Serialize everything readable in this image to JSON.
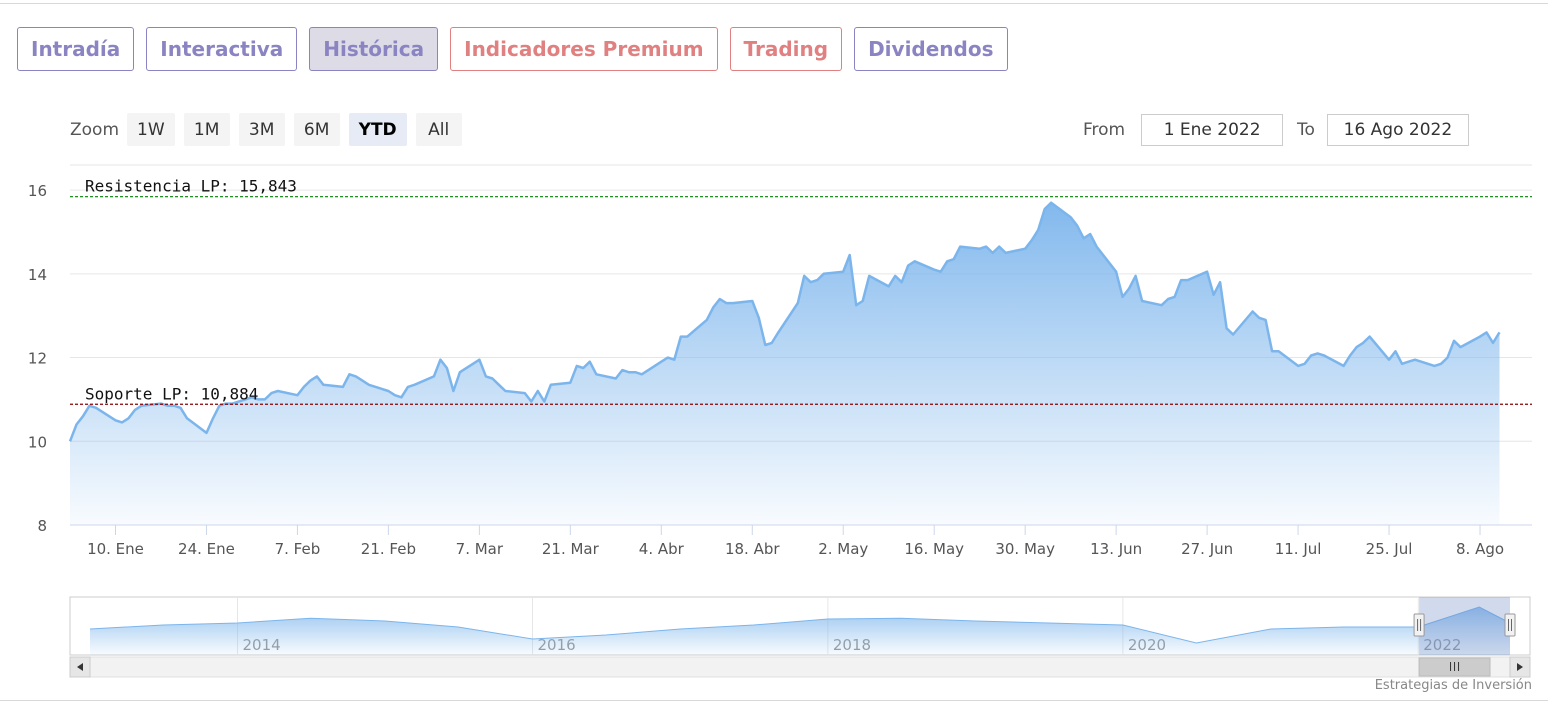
{
  "tabs": [
    {
      "label": "Intradía",
      "color": "#8a84c2",
      "active": false
    },
    {
      "label": "Interactiva",
      "color": "#8a84c2",
      "active": false
    },
    {
      "label": "Histórica",
      "color": "#8a84c2",
      "active": true
    },
    {
      "label": "Indicadores Premium",
      "color": "#e08080",
      "active": false
    },
    {
      "label": "Trading",
      "color": "#e08080",
      "active": false
    },
    {
      "label": "Dividendos",
      "color": "#8a84c2",
      "active": false
    }
  ],
  "zoom": {
    "label": "Zoom",
    "options": [
      "1W",
      "1M",
      "3M",
      "6M",
      "YTD",
      "All"
    ],
    "selected": "YTD"
  },
  "range": {
    "from_label": "From",
    "from_value": "1 Ene 2022",
    "to_label": "To",
    "to_value": "16 Ago 2022"
  },
  "credit": "Estrategias de Inversión",
  "colors": {
    "series": "#7cb5ec",
    "resistance": "#008000",
    "support": "#8b0000"
  },
  "chart_data": {
    "type": "area",
    "title": "",
    "xlabel": "",
    "ylabel": "",
    "ylim": [
      8,
      16.6
    ],
    "y_ticks": [
      8,
      10,
      12,
      14,
      16
    ],
    "x_tick_labels": [
      "10. Ene",
      "24. Ene",
      "7. Feb",
      "21. Feb",
      "7. Mar",
      "21. Mar",
      "4. Abr",
      "18. Abr",
      "2. May",
      "16. May",
      "30. May",
      "13. Jun",
      "27. Jun",
      "11. Jul",
      "25. Jul",
      "8. Ago"
    ],
    "x_start": "2022-01-03",
    "x_end": "2022-08-16",
    "grid": true,
    "series": [
      {
        "values": [
          [
            "2022-01-03",
            10.0
          ],
          [
            "2022-01-04",
            10.4
          ],
          [
            "2022-01-05",
            10.6
          ],
          [
            "2022-01-06",
            10.85
          ],
          [
            "2022-01-07",
            10.8
          ],
          [
            "2022-01-10",
            10.5
          ],
          [
            "2022-01-11",
            10.45
          ],
          [
            "2022-01-12",
            10.55
          ],
          [
            "2022-01-13",
            10.75
          ],
          [
            "2022-01-14",
            10.85
          ],
          [
            "2022-01-17",
            10.9
          ],
          [
            "2022-01-18",
            10.85
          ],
          [
            "2022-01-19",
            10.85
          ],
          [
            "2022-01-20",
            10.8
          ],
          [
            "2022-01-21",
            10.55
          ],
          [
            "2022-01-24",
            10.2
          ],
          [
            "2022-01-25",
            10.55
          ],
          [
            "2022-01-26",
            10.85
          ],
          [
            "2022-01-27",
            10.9
          ],
          [
            "2022-01-28",
            10.9
          ],
          [
            "2022-01-31",
            11.05
          ],
          [
            "2022-02-01",
            11.0
          ],
          [
            "2022-02-02",
            11.0
          ],
          [
            "2022-02-03",
            11.15
          ],
          [
            "2022-02-04",
            11.2
          ],
          [
            "2022-02-07",
            11.1
          ],
          [
            "2022-02-08",
            11.3
          ],
          [
            "2022-02-09",
            11.45
          ],
          [
            "2022-02-10",
            11.55
          ],
          [
            "2022-02-11",
            11.35
          ],
          [
            "2022-02-14",
            11.3
          ],
          [
            "2022-02-15",
            11.6
          ],
          [
            "2022-02-16",
            11.55
          ],
          [
            "2022-02-17",
            11.45
          ],
          [
            "2022-02-18",
            11.35
          ],
          [
            "2022-02-21",
            11.2
          ],
          [
            "2022-02-22",
            11.1
          ],
          [
            "2022-02-23",
            11.05
          ],
          [
            "2022-02-24",
            11.3
          ],
          [
            "2022-02-25",
            11.35
          ],
          [
            "2022-02-28",
            11.55
          ],
          [
            "2022-03-01",
            11.95
          ],
          [
            "2022-03-02",
            11.75
          ],
          [
            "2022-03-03",
            11.2
          ],
          [
            "2022-03-04",
            11.65
          ],
          [
            "2022-03-07",
            11.95
          ],
          [
            "2022-03-08",
            11.55
          ],
          [
            "2022-03-09",
            11.5
          ],
          [
            "2022-03-10",
            11.35
          ],
          [
            "2022-03-11",
            11.2
          ],
          [
            "2022-03-14",
            11.15
          ],
          [
            "2022-03-15",
            10.95
          ],
          [
            "2022-03-16",
            11.2
          ],
          [
            "2022-03-17",
            10.95
          ],
          [
            "2022-03-18",
            11.35
          ],
          [
            "2022-03-21",
            11.4
          ],
          [
            "2022-03-22",
            11.8
          ],
          [
            "2022-03-23",
            11.75
          ],
          [
            "2022-03-24",
            11.9
          ],
          [
            "2022-03-25",
            11.6
          ],
          [
            "2022-03-28",
            11.5
          ],
          [
            "2022-03-29",
            11.7
          ],
          [
            "2022-03-30",
            11.65
          ],
          [
            "2022-03-31",
            11.65
          ],
          [
            "2022-04-01",
            11.6
          ],
          [
            "2022-04-04",
            11.9
          ],
          [
            "2022-04-05",
            12.0
          ],
          [
            "2022-04-06",
            11.95
          ],
          [
            "2022-04-07",
            12.5
          ],
          [
            "2022-04-08",
            12.5
          ],
          [
            "2022-04-11",
            12.9
          ],
          [
            "2022-04-12",
            13.2
          ],
          [
            "2022-04-13",
            13.4
          ],
          [
            "2022-04-14",
            13.3
          ],
          [
            "2022-04-15",
            13.3
          ],
          [
            "2022-04-18",
            13.35
          ],
          [
            "2022-04-19",
            12.95
          ],
          [
            "2022-04-20",
            12.3
          ],
          [
            "2022-04-21",
            12.35
          ],
          [
            "2022-04-22",
            12.6
          ],
          [
            "2022-04-25",
            13.3
          ],
          [
            "2022-04-26",
            13.95
          ],
          [
            "2022-04-27",
            13.8
          ],
          [
            "2022-04-28",
            13.85
          ],
          [
            "2022-04-29",
            14.0
          ],
          [
            "2022-05-02",
            14.05
          ],
          [
            "2022-05-03",
            14.45
          ],
          [
            "2022-05-04",
            13.25
          ],
          [
            "2022-05-05",
            13.35
          ],
          [
            "2022-05-06",
            13.95
          ],
          [
            "2022-05-09",
            13.7
          ],
          [
            "2022-05-10",
            13.95
          ],
          [
            "2022-05-11",
            13.8
          ],
          [
            "2022-05-12",
            14.2
          ],
          [
            "2022-05-13",
            14.3
          ],
          [
            "2022-05-16",
            14.1
          ],
          [
            "2022-05-17",
            14.05
          ],
          [
            "2022-05-18",
            14.3
          ],
          [
            "2022-05-19",
            14.35
          ],
          [
            "2022-05-20",
            14.65
          ],
          [
            "2022-05-23",
            14.6
          ],
          [
            "2022-05-24",
            14.65
          ],
          [
            "2022-05-25",
            14.5
          ],
          [
            "2022-05-26",
            14.65
          ],
          [
            "2022-05-27",
            14.5
          ],
          [
            "2022-05-30",
            14.6
          ],
          [
            "2022-05-31",
            14.8
          ],
          [
            "2022-06-01",
            15.05
          ],
          [
            "2022-06-02",
            15.55
          ],
          [
            "2022-06-03",
            15.7
          ],
          [
            "2022-06-06",
            15.35
          ],
          [
            "2022-06-07",
            15.15
          ],
          [
            "2022-06-08",
            14.85
          ],
          [
            "2022-06-09",
            14.95
          ],
          [
            "2022-06-10",
            14.65
          ],
          [
            "2022-06-13",
            14.05
          ],
          [
            "2022-06-14",
            13.45
          ],
          [
            "2022-06-15",
            13.65
          ],
          [
            "2022-06-16",
            13.95
          ],
          [
            "2022-06-17",
            13.35
          ],
          [
            "2022-06-20",
            13.25
          ],
          [
            "2022-06-21",
            13.4
          ],
          [
            "2022-06-22",
            13.45
          ],
          [
            "2022-06-23",
            13.85
          ],
          [
            "2022-06-24",
            13.85
          ],
          [
            "2022-06-27",
            14.05
          ],
          [
            "2022-06-28",
            13.5
          ],
          [
            "2022-06-29",
            13.8
          ],
          [
            "2022-06-30",
            12.7
          ],
          [
            "2022-07-01",
            12.55
          ],
          [
            "2022-07-04",
            13.1
          ],
          [
            "2022-07-05",
            12.95
          ],
          [
            "2022-07-06",
            12.9
          ],
          [
            "2022-07-07",
            12.15
          ],
          [
            "2022-07-08",
            12.15
          ],
          [
            "2022-07-11",
            11.8
          ],
          [
            "2022-07-12",
            11.85
          ],
          [
            "2022-07-13",
            12.05
          ],
          [
            "2022-07-14",
            12.1
          ],
          [
            "2022-07-15",
            12.05
          ],
          [
            "2022-07-18",
            11.8
          ],
          [
            "2022-07-19",
            12.05
          ],
          [
            "2022-07-20",
            12.25
          ],
          [
            "2022-07-21",
            12.35
          ],
          [
            "2022-07-22",
            12.5
          ],
          [
            "2022-07-25",
            11.95
          ],
          [
            "2022-07-26",
            12.15
          ],
          [
            "2022-07-27",
            11.85
          ],
          [
            "2022-07-28",
            11.9
          ],
          [
            "2022-07-29",
            11.95
          ],
          [
            "2022-08-01",
            11.8
          ],
          [
            "2022-08-02",
            11.85
          ],
          [
            "2022-08-03",
            12.0
          ],
          [
            "2022-08-04",
            12.4
          ],
          [
            "2022-08-05",
            12.25
          ],
          [
            "2022-08-08",
            12.5
          ],
          [
            "2022-08-09",
            12.6
          ],
          [
            "2022-08-10",
            12.35
          ],
          [
            "2022-08-11",
            12.6
          ]
        ]
      }
    ],
    "annotations": [
      {
        "label": "Resistencia LP: 15,843",
        "y": 15.843,
        "color": "#008000"
      },
      {
        "label": "Soporte LP: 10,884",
        "y": 10.884,
        "color": "#8b0000"
      }
    ],
    "navigator": {
      "year_labels": [
        "2014",
        "2016",
        "2018",
        "2020",
        "2022"
      ],
      "x_start": "2013-01-01",
      "x_end": "2022-08-16",
      "values": [
        [
          "2013-01-01",
          0.45
        ],
        [
          "2013-07-01",
          0.55
        ],
        [
          "2014-01-01",
          0.6
        ],
        [
          "2014-07-01",
          0.72
        ],
        [
          "2015-01-01",
          0.65
        ],
        [
          "2015-07-01",
          0.5
        ],
        [
          "2016-01-01",
          0.2
        ],
        [
          "2016-07-01",
          0.3
        ],
        [
          "2017-01-01",
          0.45
        ],
        [
          "2017-07-01",
          0.55
        ],
        [
          "2018-01-01",
          0.7
        ],
        [
          "2018-07-01",
          0.72
        ],
        [
          "2019-01-01",
          0.65
        ],
        [
          "2019-07-01",
          0.6
        ],
        [
          "2020-01-01",
          0.55
        ],
        [
          "2020-07-01",
          0.1
        ],
        [
          "2021-01-01",
          0.45
        ],
        [
          "2021-07-01",
          0.5
        ],
        [
          "2022-01-01",
          0.5
        ],
        [
          "2022-06-01",
          1.0
        ],
        [
          "2022-08-16",
          0.6
        ]
      ]
    }
  }
}
